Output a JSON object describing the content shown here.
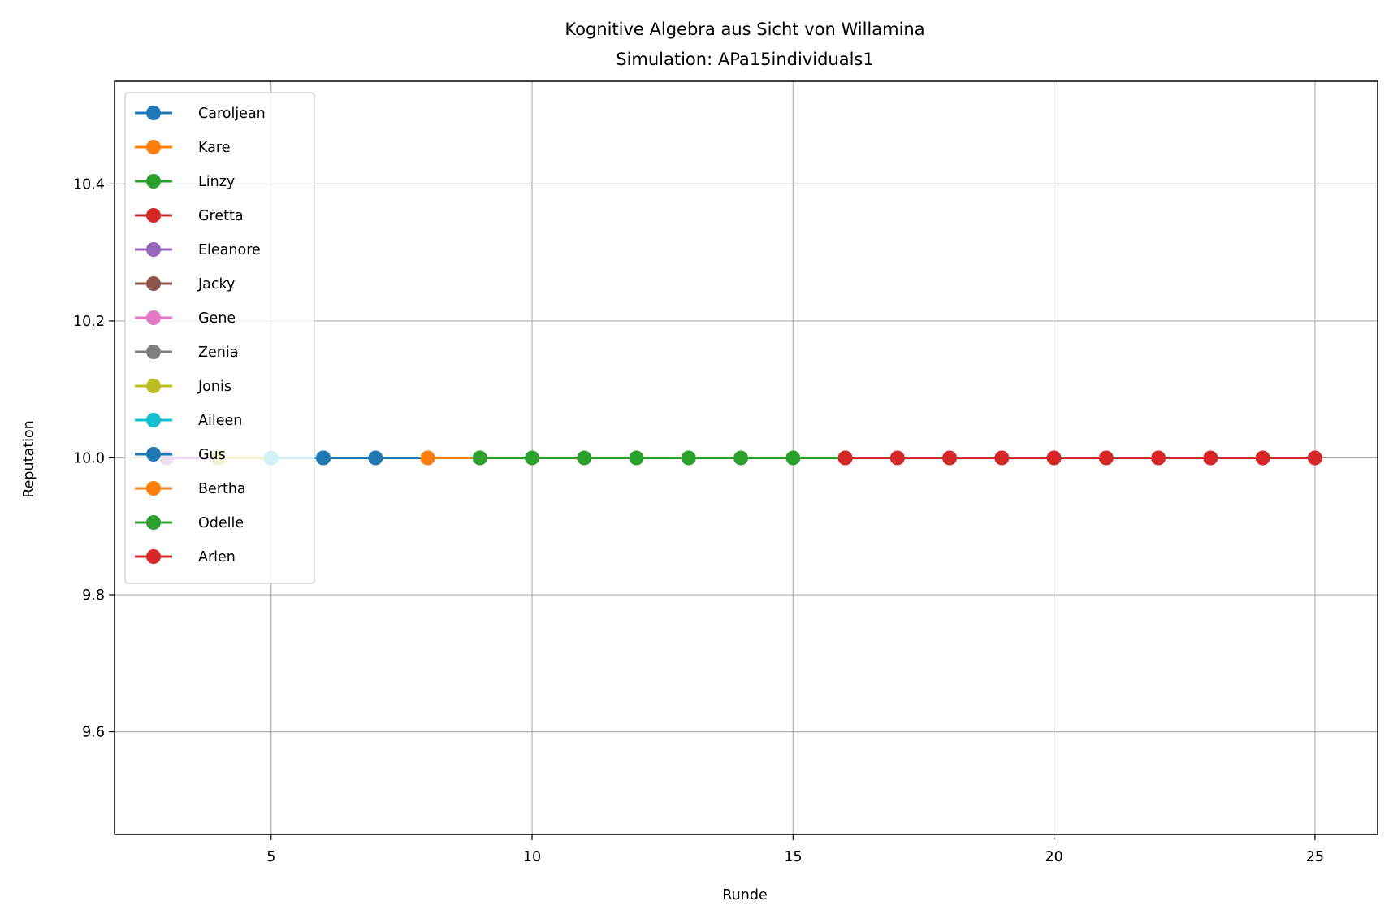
{
  "chart_data": {
    "type": "line",
    "title": "Kognitive Algebra aus Sicht von Willamina",
    "subtitle": "Simulation: APa15individuals1",
    "xlabel": "Runde",
    "ylabel": "Reputation",
    "xlim": [
      2,
      26.2
    ],
    "ylim": [
      9.45,
      10.55
    ],
    "xticks": [
      5,
      10,
      15,
      20,
      25
    ],
    "xtick_labels": [
      "5",
      "10",
      "15",
      "20",
      "25"
    ],
    "yticks": [
      9.6,
      9.8,
      10.0,
      10.2,
      10.4
    ],
    "ytick_labels": [
      "9.6",
      "9.8",
      "10.0",
      "10.2",
      "10.4"
    ],
    "grid": true,
    "legend_position": "upper-left",
    "series": [
      {
        "name": "Caroljean",
        "color": "#1f77b4",
        "x": [],
        "y": []
      },
      {
        "name": "Kare",
        "color": "#ff7f0e",
        "x": [],
        "y": []
      },
      {
        "name": "Linzy",
        "color": "#2ca02c",
        "x": [],
        "y": []
      },
      {
        "name": "Gretta",
        "color": "#d62728",
        "x": [],
        "y": []
      },
      {
        "name": "Eleanore",
        "color": "#9467bd",
        "x": [
          3,
          4
        ],
        "y": [
          10.0,
          10.0
        ]
      },
      {
        "name": "Jacky",
        "color": "#8c564b",
        "x": [],
        "y": []
      },
      {
        "name": "Gene",
        "color": "#e377c2",
        "x": [],
        "y": []
      },
      {
        "name": "Zenia",
        "color": "#7f7f7f",
        "x": [],
        "y": []
      },
      {
        "name": "Jonis",
        "color": "#bcbd22",
        "x": [
          4,
          5
        ],
        "y": [
          10.0,
          10.0
        ]
      },
      {
        "name": "Aileen",
        "color": "#17becf",
        "x": [
          5,
          6
        ],
        "y": [
          10.0,
          10.0
        ]
      },
      {
        "name": "Gus",
        "color": "#1f77b4",
        "x": [
          6,
          7,
          8
        ],
        "y": [
          10.0,
          10.0,
          10.0
        ]
      },
      {
        "name": "Bertha",
        "color": "#ff7f0e",
        "x": [
          8,
          9
        ],
        "y": [
          10.0,
          10.0
        ]
      },
      {
        "name": "Odelle",
        "color": "#2ca02c",
        "x": [
          9,
          10,
          11,
          12,
          13,
          14,
          15,
          16
        ],
        "y": [
          10.0,
          10.0,
          10.0,
          10.0,
          10.0,
          10.0,
          10.0,
          10.0
        ]
      },
      {
        "name": "Arlen",
        "color": "#d62728",
        "x": [
          16,
          17,
          18,
          19,
          20,
          21,
          22,
          23,
          24,
          25
        ],
        "y": [
          10.0,
          10.0,
          10.0,
          10.0,
          10.0,
          10.0,
          10.0,
          10.0,
          10.0,
          10.0
        ]
      }
    ]
  }
}
